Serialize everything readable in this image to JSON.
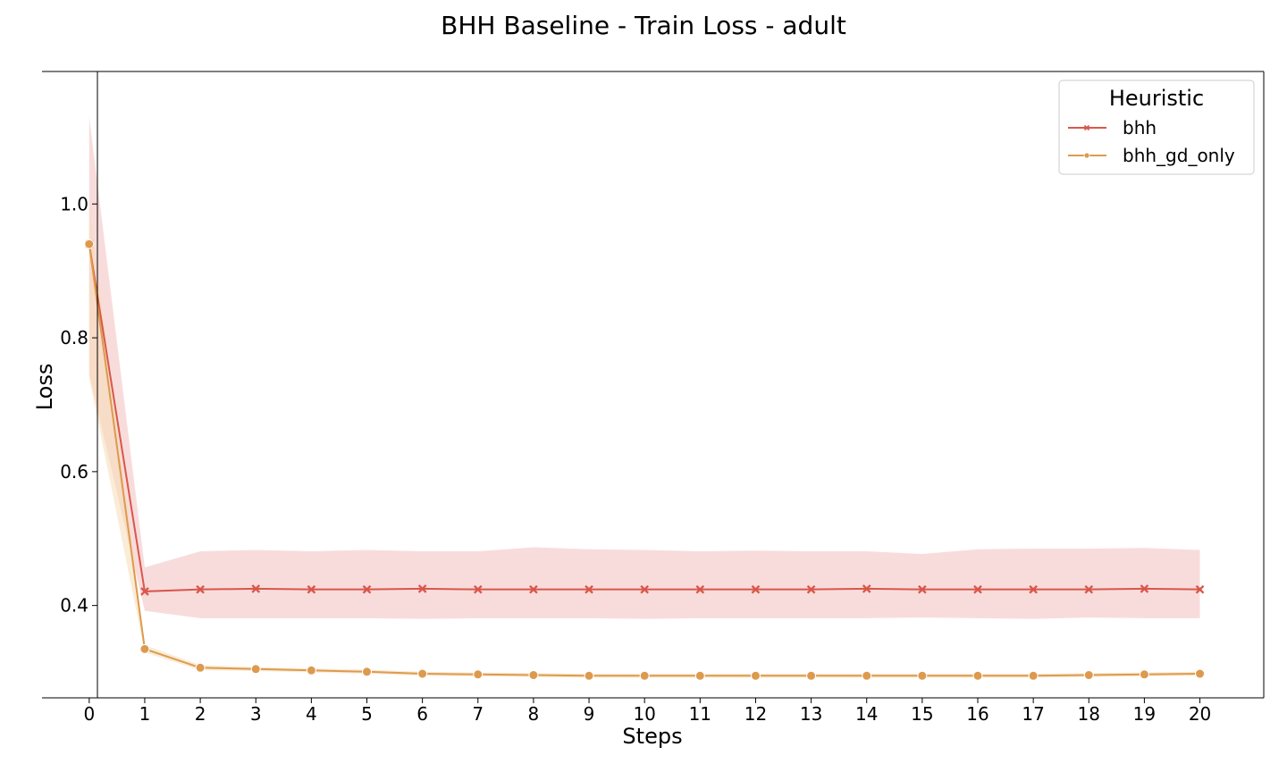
{
  "chart_data": {
    "type": "line",
    "title": "BHH Baseline - Train Loss - adult",
    "xlabel": "Steps",
    "ylabel": "Loss",
    "x": [
      0,
      1,
      2,
      3,
      4,
      5,
      6,
      7,
      8,
      9,
      10,
      11,
      12,
      13,
      14,
      15,
      16,
      17,
      18,
      19,
      20
    ],
    "xticks": [
      "0",
      "1",
      "2",
      "3",
      "4",
      "5",
      "6",
      "7",
      "8",
      "9",
      "10",
      "11",
      "12",
      "13",
      "14",
      "15",
      "16",
      "17",
      "18",
      "19",
      "20"
    ],
    "yticks": [
      "0.4",
      "0.6",
      "0.8",
      "1.0"
    ],
    "ytick_values": [
      0.4,
      0.6,
      0.8,
      1.0
    ],
    "xlim": [
      -0.85,
      21.15
    ],
    "ylim": [
      0.262,
      1.198
    ],
    "grid": false,
    "legend": {
      "title": "Heuristic",
      "placement": "top-right"
    },
    "series": [
      {
        "name": "bhh",
        "color": "#d9574a",
        "band_color": "#f2c0c0",
        "marker": "x",
        "values": [
          0.94,
          0.421,
          0.424,
          0.425,
          0.424,
          0.424,
          0.425,
          0.424,
          0.424,
          0.424,
          0.424,
          0.424,
          0.424,
          0.424,
          0.425,
          0.424,
          0.424,
          0.424,
          0.424,
          0.425,
          0.424
        ],
        "upper": [
          1.13,
          0.457,
          0.481,
          0.483,
          0.481,
          0.483,
          0.481,
          0.481,
          0.487,
          0.484,
          0.483,
          0.481,
          0.482,
          0.481,
          0.481,
          0.477,
          0.484,
          0.485,
          0.485,
          0.486,
          0.483
        ],
        "lower": [
          0.745,
          0.392,
          0.381,
          0.381,
          0.381,
          0.381,
          0.38,
          0.381,
          0.381,
          0.381,
          0.38,
          0.381,
          0.381,
          0.381,
          0.381,
          0.382,
          0.381,
          0.38,
          0.382,
          0.381,
          0.381
        ]
      },
      {
        "name": "bhh_gd_only",
        "color": "#dd9a4e",
        "band_color": "#f6ddb6",
        "marker": "o",
        "values": [
          0.94,
          0.335,
          0.307,
          0.305,
          0.303,
          0.301,
          0.298,
          0.297,
          0.296,
          0.295,
          0.295,
          0.295,
          0.295,
          0.295,
          0.295,
          0.295,
          0.295,
          0.295,
          0.296,
          0.297,
          0.298
        ],
        "upper": [
          1.0,
          0.341,
          0.311,
          0.308,
          0.306,
          0.304,
          0.301,
          0.3,
          0.299,
          0.298,
          0.298,
          0.298,
          0.298,
          0.298,
          0.298,
          0.298,
          0.298,
          0.298,
          0.299,
          0.3,
          0.301
        ],
        "lower": [
          0.74,
          0.33,
          0.303,
          0.302,
          0.3,
          0.298,
          0.295,
          0.294,
          0.293,
          0.292,
          0.292,
          0.292,
          0.292,
          0.292,
          0.292,
          0.292,
          0.292,
          0.292,
          0.293,
          0.294,
          0.295
        ]
      }
    ]
  }
}
